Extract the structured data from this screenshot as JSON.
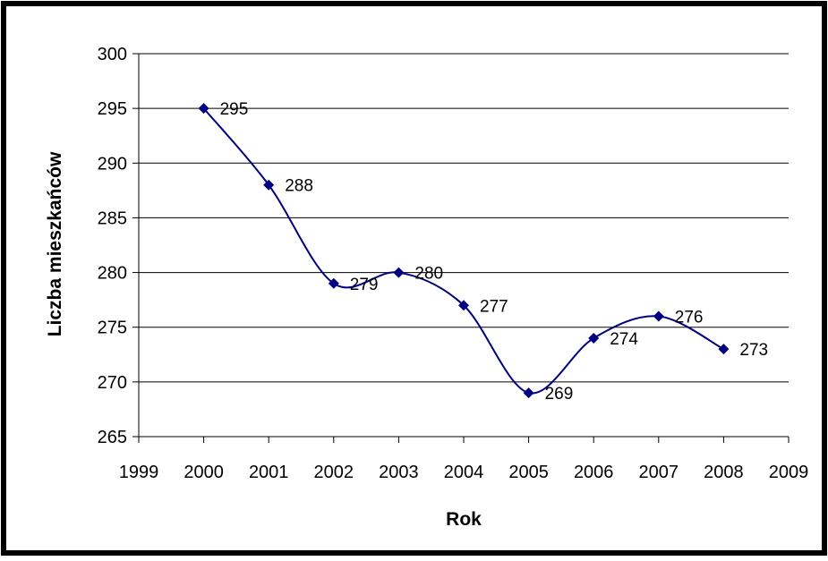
{
  "chart_data": {
    "type": "line",
    "title": "",
    "xlabel": "Rok",
    "ylabel": "Liczba mieszkańców",
    "x": [
      2000,
      2001,
      2002,
      2003,
      2004,
      2005,
      2006,
      2007,
      2008
    ],
    "series": [
      {
        "values": [
          295,
          288,
          279,
          280,
          277,
          269,
          274,
          276,
          273
        ]
      }
    ],
    "xlim": [
      1999,
      2009
    ],
    "ylim": [
      265,
      300
    ],
    "x_ticks": [
      1999,
      2000,
      2001,
      2002,
      2003,
      2004,
      2005,
      2006,
      2007,
      2008,
      2009
    ],
    "y_ticks": [
      265,
      270,
      275,
      280,
      285,
      290,
      295,
      300
    ],
    "smoothed": true,
    "marker": "diamond",
    "data_labels": true,
    "grid": "horizontal",
    "legend": "none",
    "colors": {
      "series": "#000080",
      "grid": "#000000",
      "frame": "#000000"
    }
  }
}
